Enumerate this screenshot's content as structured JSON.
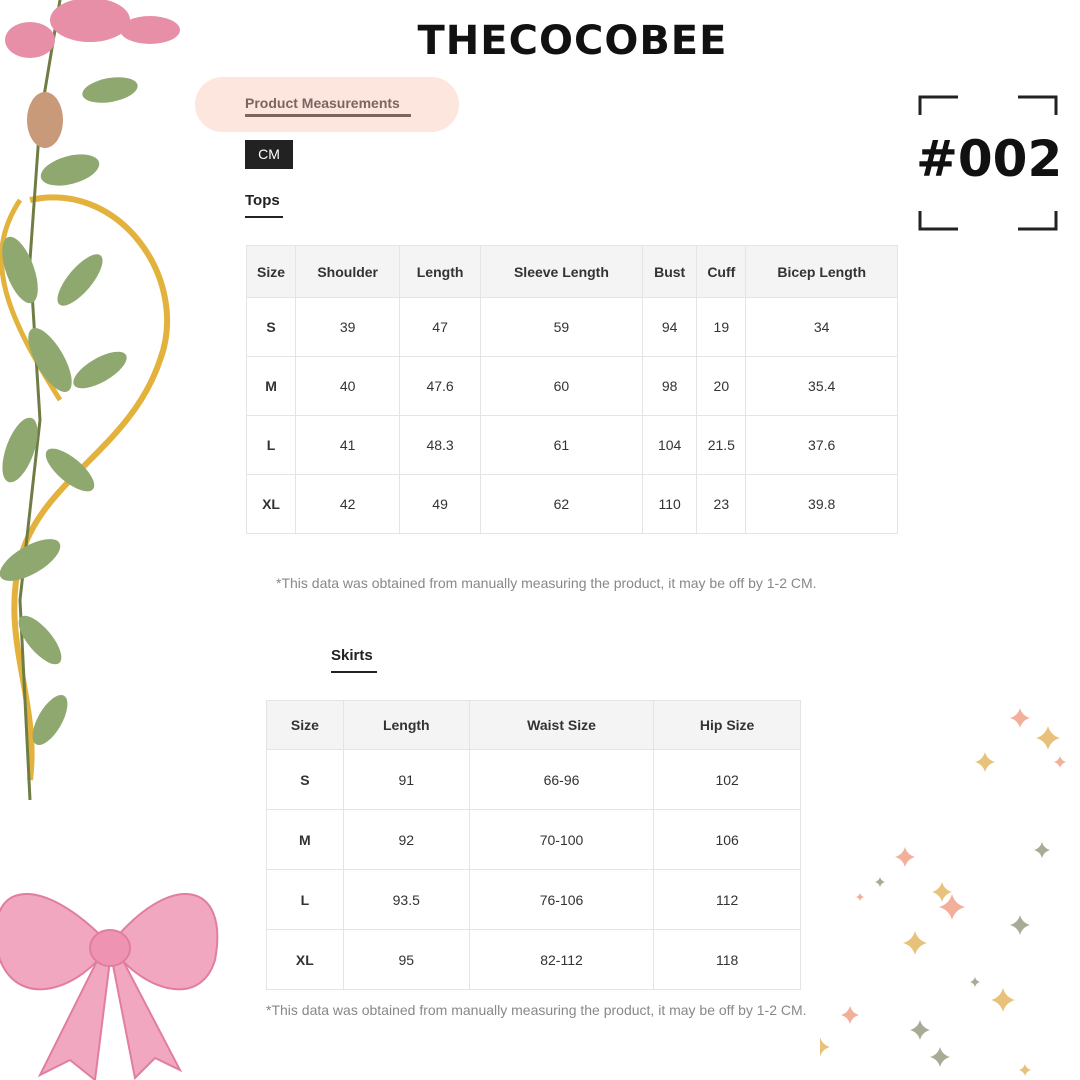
{
  "brand": "THECOCOBEE",
  "post_code": "#002",
  "header": {
    "tab_label": "Product Measurements",
    "unit_button": "CM"
  },
  "colors": {
    "pill": "#fde6de",
    "tab_text": "#7a6660",
    "unit_bg": "#222222",
    "header_bg": "#f4f4f4"
  },
  "tops": {
    "title": "Tops",
    "columns": [
      "Size",
      "Shoulder",
      "Length",
      "Sleeve Length",
      "Bust",
      "Cuff",
      "Bicep Length"
    ],
    "rows": [
      [
        "S",
        "39",
        "47",
        "59",
        "94",
        "19",
        "34"
      ],
      [
        "M",
        "40",
        "47.6",
        "60",
        "98",
        "20",
        "35.4"
      ],
      [
        "L",
        "41",
        "48.3",
        "61",
        "104",
        "21.5",
        "37.6"
      ],
      [
        "XL",
        "42",
        "49",
        "62",
        "110",
        "23",
        "39.8"
      ]
    ],
    "note": "*This data was obtained from manually measuring the product, it may be off by 1-2 CM."
  },
  "skirts": {
    "title": "Skirts",
    "columns": [
      "Size",
      "Length",
      "Waist Size",
      "Hip Size"
    ],
    "rows": [
      [
        "S",
        "91",
        "66-96",
        "102"
      ],
      [
        "M",
        "92",
        "70-100",
        "106"
      ],
      [
        "L",
        "93.5",
        "76-106",
        "112"
      ],
      [
        "XL",
        "95",
        "82-112",
        "118"
      ]
    ],
    "note": "*This data was obtained from manually measuring the product, it may be off by 1-2 CM."
  }
}
